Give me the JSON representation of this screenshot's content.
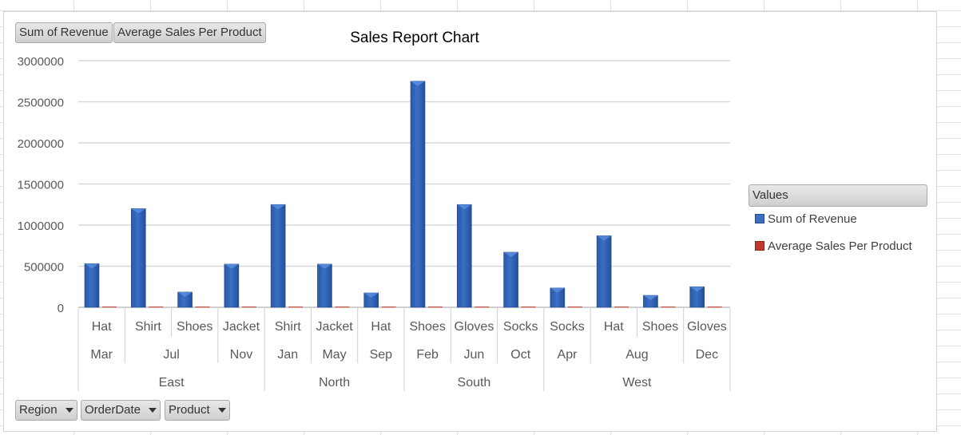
{
  "filter_buttons": {
    "sum_of_revenue": "Sum of Revenue",
    "avg_sales": "Average Sales Per Product",
    "region": "Region",
    "order_date": "OrderDate",
    "product": "Product"
  },
  "legend": {
    "header": "Values",
    "items": [
      {
        "label": "Sum of Revenue",
        "color": "#3a6fc4"
      },
      {
        "label": "Average Sales Per Product",
        "color": "#c0392b"
      }
    ]
  },
  "chart_data": {
    "type": "bar",
    "title": "Sales Report Chart",
    "xlabel": "",
    "ylabel": "",
    "ylim": [
      0,
      3000000
    ],
    "yticks": [
      0,
      500000,
      1000000,
      1500000,
      2000000,
      2500000,
      3000000
    ],
    "ytick_labels": [
      "0",
      "500000",
      "1000000",
      "1500000",
      "2000000",
      "2500000",
      "3000000"
    ],
    "grid": true,
    "legend_position": "right",
    "categories": [
      {
        "region": "East",
        "month": "Mar",
        "product": "Hat"
      },
      {
        "region": "East",
        "month": "Jul",
        "product": "Shirt"
      },
      {
        "region": "East",
        "month": "Jul",
        "product": "Shoes"
      },
      {
        "region": "East",
        "month": "Nov",
        "product": "Jacket"
      },
      {
        "region": "North",
        "month": "Jan",
        "product": "Shirt"
      },
      {
        "region": "North",
        "month": "May",
        "product": "Jacket"
      },
      {
        "region": "North",
        "month": "Sep",
        "product": "Hat"
      },
      {
        "region": "South",
        "month": "Feb",
        "product": "Shoes"
      },
      {
        "region": "South",
        "month": "Jun",
        "product": "Gloves"
      },
      {
        "region": "South",
        "month": "Oct",
        "product": "Socks"
      },
      {
        "region": "West",
        "month": "Apr",
        "product": "Socks"
      },
      {
        "region": "West",
        "month": "Aug",
        "product": "Hat"
      },
      {
        "region": "West",
        "month": "Aug",
        "product": "Shoes"
      },
      {
        "region": "West",
        "month": "Dec",
        "product": "Gloves"
      }
    ],
    "series": [
      {
        "name": "Sum of Revenue",
        "color": "#3a6fc4",
        "values": [
          530000,
          1200000,
          185000,
          525000,
          1250000,
          525000,
          175000,
          2750000,
          1250000,
          670000,
          235000,
          870000,
          145000,
          250000
        ]
      },
      {
        "name": "Average Sales Per Product",
        "color": "#c0392b",
        "values": [
          8000,
          8000,
          8000,
          8000,
          8000,
          8000,
          8000,
          8000,
          8000,
          8000,
          8000,
          8000,
          8000,
          8000
        ]
      }
    ]
  }
}
